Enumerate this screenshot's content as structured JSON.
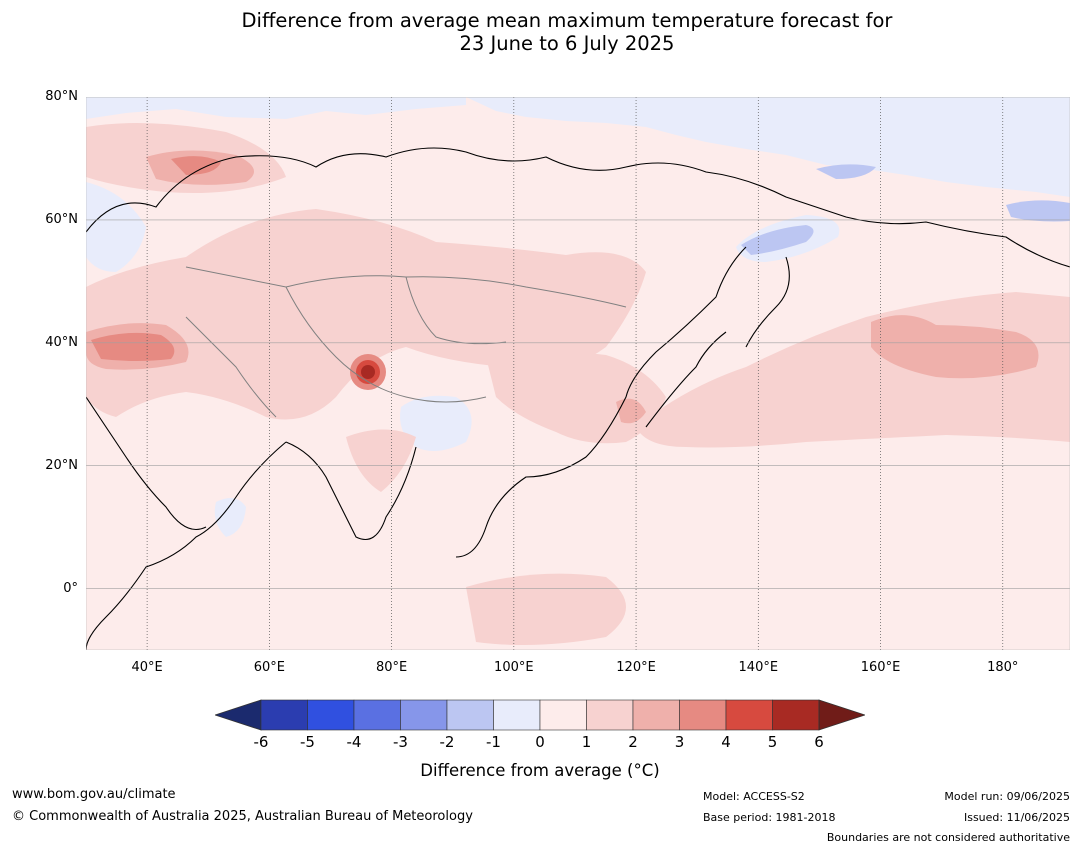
{
  "title": {
    "line1": "Difference from average mean maximum temperature forecast for",
    "line2": "23 June to 6 July 2025"
  },
  "axes": {
    "lat_labels": [
      "80°N",
      "60°N",
      "40°N",
      "20°N",
      "0°"
    ],
    "lon_labels": [
      "40°E",
      "60°E",
      "80°E",
      "100°E",
      "120°E",
      "140°E",
      "160°E",
      "180°"
    ],
    "lat_range": [
      -10,
      80
    ],
    "lon_range": [
      30,
      191
    ]
  },
  "colorbar": {
    "label": "Difference from average (°C)",
    "ticks": [
      "-6",
      "-5",
      "-4",
      "-3",
      "-2",
      "-1",
      "0",
      "1",
      "2",
      "3",
      "4",
      "5",
      "6"
    ],
    "colors": [
      "#1b2a6e",
      "#2b3db0",
      "#3050e0",
      "#5a70e2",
      "#8696ea",
      "#bcc6f2",
      "#e8ecfb",
      "#fdeceb",
      "#f7d2d0",
      "#efb0ab",
      "#e68a82",
      "#d74a3f",
      "#a82a23",
      "#701c18"
    ]
  },
  "footer": {
    "website": "www.bom.gov.au/climate",
    "copyright": "© Commonwealth of Australia 2025, Australian Bureau of Meteorology",
    "model": "Model: ACCESS-S2",
    "base_period": "Base period: 1981-2018",
    "model_run": "Model run: 09/06/2025",
    "issued": "Issued: 11/06/2025",
    "disclaimer": "Boundaries are not considered authoritative"
  }
}
